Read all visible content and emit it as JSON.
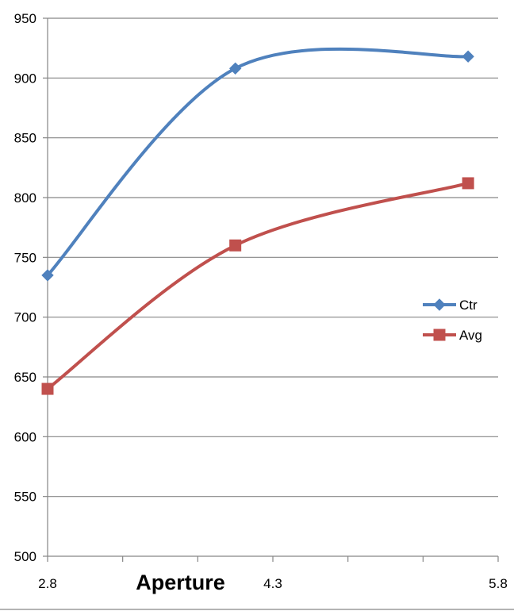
{
  "chart_data": {
    "type": "line",
    "title": "",
    "xlabel": "Aperture",
    "ylabel": "",
    "x": [
      2.8,
      4.05,
      5.6
    ],
    "x_tick_labels": [
      "2.8",
      "4.3",
      "5.8"
    ],
    "x_tick_label_values": [
      2.8,
      4.3,
      5.8
    ],
    "xlim": [
      2.8,
      5.8
    ],
    "ylim": [
      500,
      950
    ],
    "y_ticks": [
      500,
      550,
      600,
      650,
      700,
      750,
      800,
      850,
      900,
      950
    ],
    "grid": true,
    "smooth": true,
    "legend_position": "right",
    "series": [
      {
        "name": "Ctr",
        "values": [
          735,
          908,
          918
        ],
        "color": "#4f81bd",
        "marker": "diamond"
      },
      {
        "name": "Avg",
        "values": [
          640,
          760,
          812
        ],
        "color": "#c0504d",
        "marker": "square"
      }
    ]
  }
}
